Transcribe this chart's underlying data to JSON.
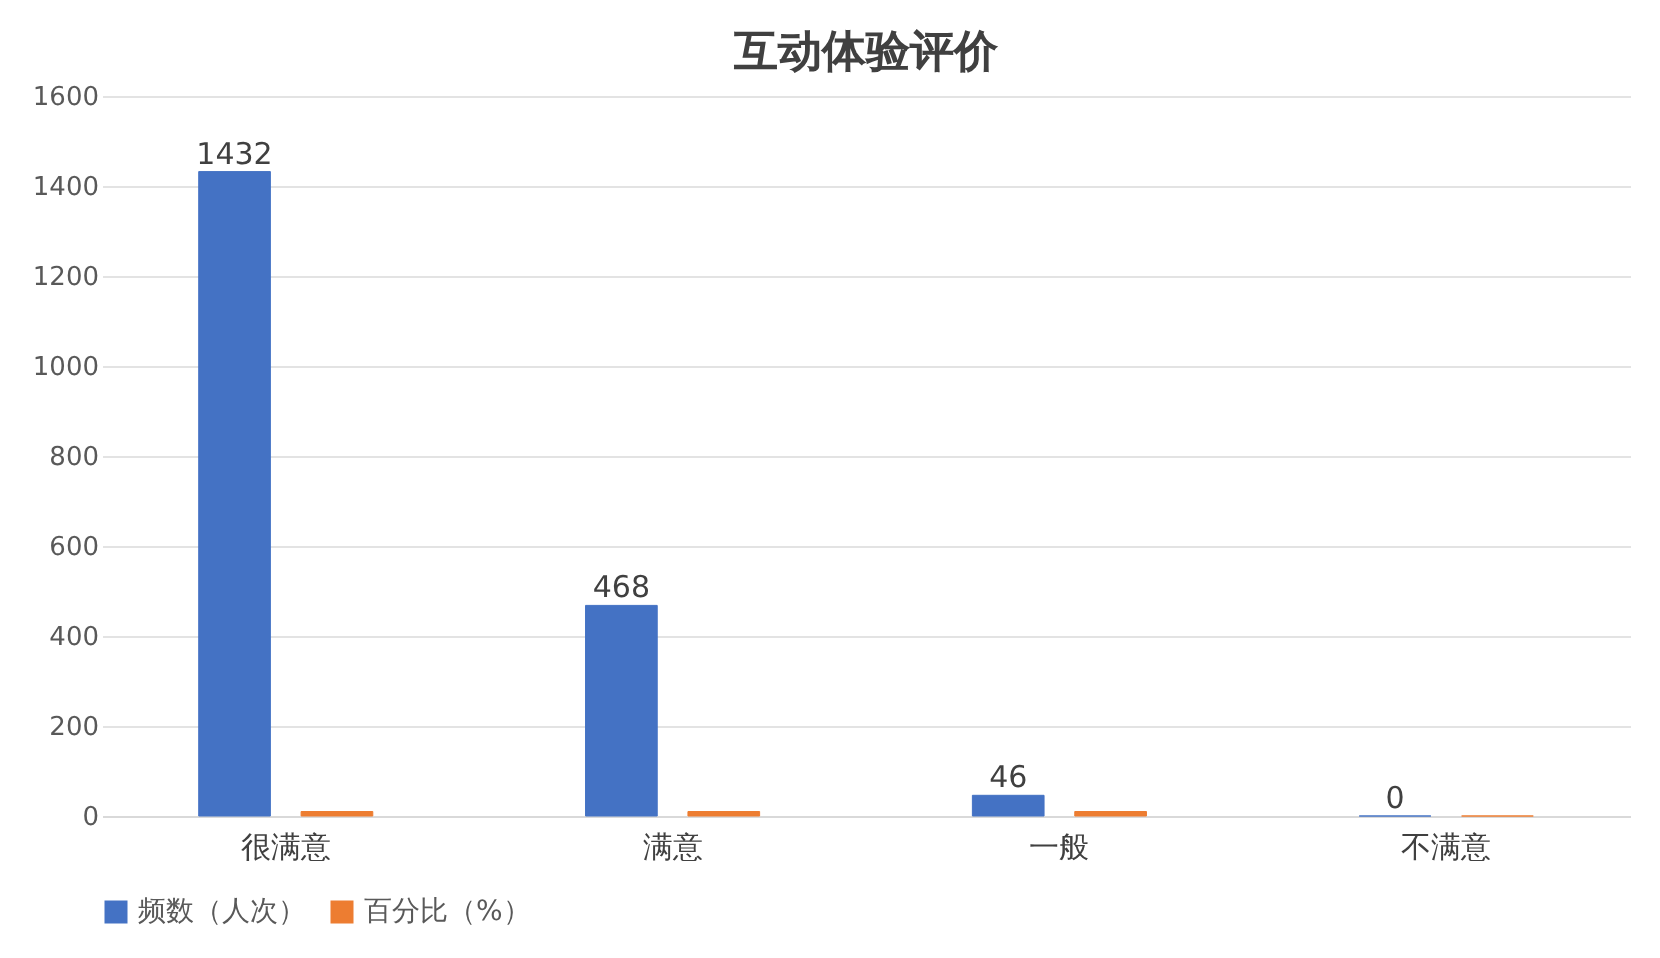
{
  "chart_data": {
    "type": "bar",
    "title": "互动体验评价",
    "categories": [
      "很满意",
      "满意",
      "一般",
      "不满意"
    ],
    "series": [
      {
        "name": "频数（人次）",
        "color": "#4472c4",
        "values": [
          1432,
          468,
          46,
          0
        ],
        "value_labels": [
          "1432",
          "468",
          "46",
          "0"
        ]
      },
      {
        "name": "百分比（%）",
        "color": "#ed7d31",
        "values": [
          10,
          10,
          10,
          0
        ]
      }
    ],
    "ylim": [
      0,
      1600
    ],
    "yticks": [
      0,
      200,
      400,
      600,
      800,
      1000,
      1200,
      1400,
      1600
    ],
    "grid": "y",
    "legend": "bottom"
  }
}
